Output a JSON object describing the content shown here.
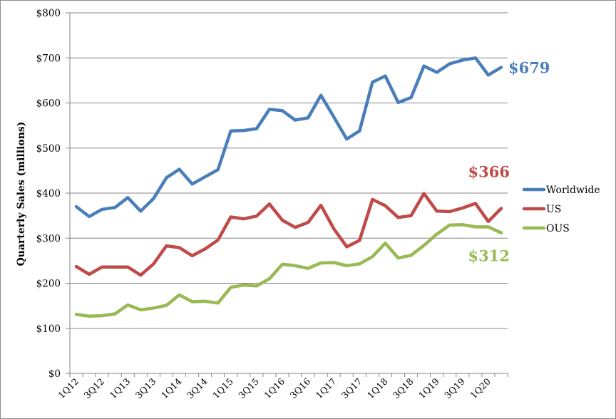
{
  "chart_data": {
    "type": "line",
    "ylabel": "Quarterly Sales (millions)",
    "xlabel": "",
    "ylim": [
      0,
      800
    ],
    "yticks": [
      0,
      100,
      200,
      300,
      400,
      500,
      600,
      700,
      800
    ],
    "ytick_labels": [
      "$0",
      "$100",
      "$200",
      "$300",
      "$400",
      "$500",
      "$600",
      "$700",
      "$800"
    ],
    "grid": "horizontal",
    "legend_position": "right",
    "categories": [
      "1Q12",
      "2Q12",
      "3Q12",
      "4Q12",
      "1Q13",
      "2Q13",
      "3Q13",
      "4Q13",
      "1Q14",
      "2Q14",
      "3Q14",
      "4Q14",
      "1Q15",
      "2Q15",
      "3Q15",
      "4Q15",
      "1Q16",
      "2Q16",
      "3Q16",
      "4Q16",
      "1Q17",
      "2Q17",
      "3Q17",
      "4Q17",
      "1Q18",
      "2Q18",
      "3Q18",
      "4Q18",
      "1Q19",
      "2Q19",
      "3Q19",
      "4Q19",
      "1Q20",
      "2Q20"
    ],
    "x_tick_labels": [
      "1Q12",
      "3Q12",
      "1Q13",
      "3Q13",
      "1Q14",
      "3Q14",
      "1Q15",
      "3Q15",
      "1Q16",
      "3Q16",
      "1Q17",
      "3Q17",
      "1Q18",
      "3Q18",
      "1Q19",
      "3Q19",
      "1Q20"
    ],
    "series": [
      {
        "name": "Worldwide",
        "color": "#4a7ebb",
        "values": [
          370,
          348,
          364,
          368,
          390,
          360,
          388,
          434,
          453,
          420,
          436,
          452,
          538,
          539,
          543,
          586,
          583,
          562,
          567,
          617,
          569,
          520,
          538,
          646,
          660,
          601,
          612,
          682,
          668,
          687,
          695,
          700,
          662,
          679
        ]
      },
      {
        "name": "US",
        "color": "#be4b48",
        "values": [
          237,
          220,
          236,
          236,
          236,
          218,
          243,
          283,
          279,
          261,
          276,
          296,
          347,
          343,
          349,
          376,
          340,
          324,
          335,
          373,
          321,
          281,
          295,
          386,
          372,
          346,
          350,
          399,
          360,
          359,
          367,
          377,
          337,
          366
        ]
      },
      {
        "name": "OUS",
        "color": "#98b954",
        "values": [
          131,
          127,
          128,
          132,
          152,
          141,
          145,
          151,
          174,
          159,
          160,
          156,
          191,
          196,
          194,
          210,
          242,
          239,
          233,
          245,
          246,
          239,
          243,
          259,
          289,
          256,
          262,
          284,
          309,
          329,
          330,
          325,
          325,
          312
        ]
      }
    ],
    "end_labels": [
      {
        "series": "Worldwide",
        "text": "$679",
        "color": "#4a7ebb"
      },
      {
        "series": "US",
        "text": "$366",
        "color": "#be4b48"
      },
      {
        "series": "OUS",
        "text": "$312",
        "color": "#98b954"
      }
    ]
  }
}
